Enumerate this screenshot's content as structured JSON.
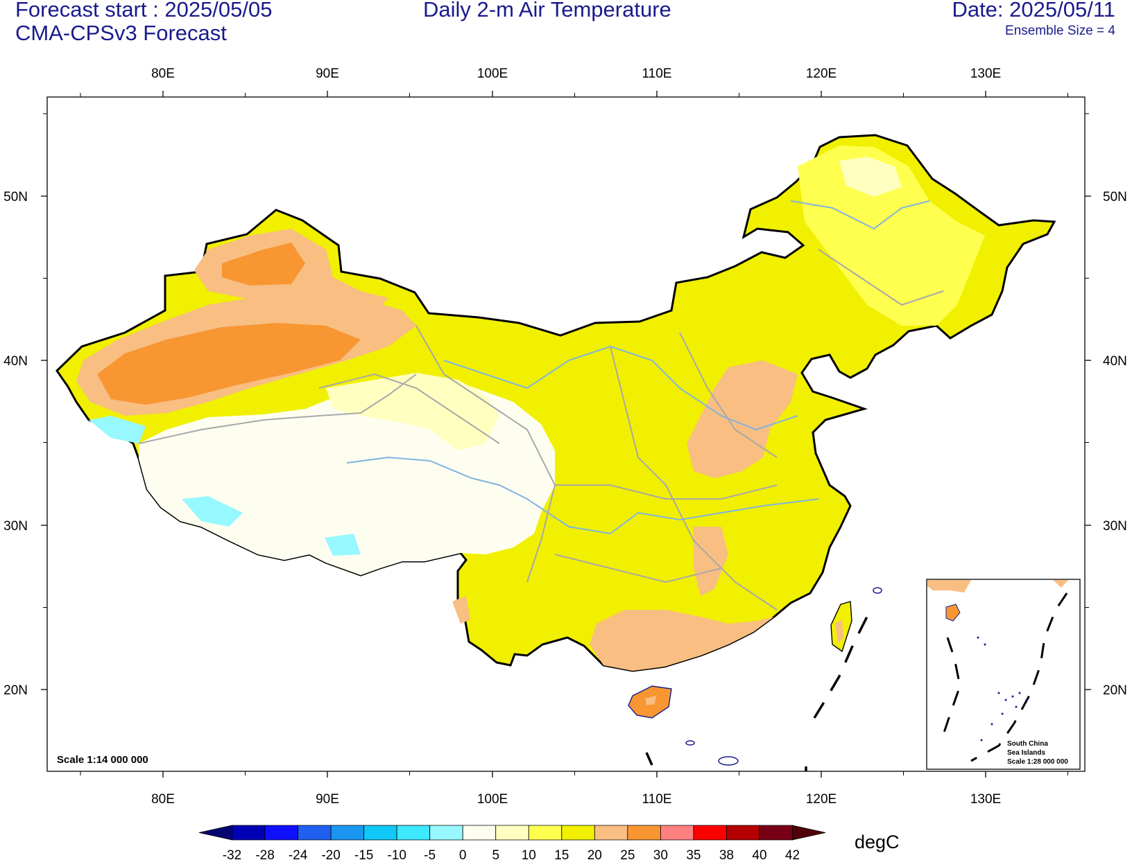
{
  "header": {
    "forecast_start": "Forecast start : 2025/05/05",
    "model": "CMA-CPSv3 Forecast",
    "title": "Daily 2-m Air Temperature",
    "date": "Date: 2025/05/11",
    "ensemble": "Ensemble Size = 4"
  },
  "map": {
    "lon_ticks": [
      "80E",
      "90E",
      "100E",
      "110E",
      "120E",
      "130E"
    ],
    "lat_ticks": [
      "50N",
      "40N",
      "30N",
      "20N"
    ],
    "scale_label": "Scale 1:14 000 000",
    "inset": {
      "line1": "South China",
      "line2": "Sea Islands",
      "line3": "Scale 1:28 000 000"
    }
  },
  "colorbar": {
    "unit": "degC",
    "levels": [
      "-32",
      "-28",
      "-24",
      "-20",
      "-15",
      "-10",
      "-5",
      "0",
      "5",
      "10",
      "15",
      "20",
      "25",
      "30",
      "35",
      "38",
      "40",
      "42"
    ],
    "colors": [
      "#050570",
      "#0000b4",
      "#1010ff",
      "#2060f0",
      "#1a96f0",
      "#10c8f8",
      "#3ee8ff",
      "#98f8ff",
      "#fefef0",
      "#ffffc0",
      "#ffff50",
      "#f0f000",
      "#f8be82",
      "#f89632",
      "#ff8080",
      "#ff0000",
      "#b40000",
      "#780014",
      "#500008"
    ]
  }
}
